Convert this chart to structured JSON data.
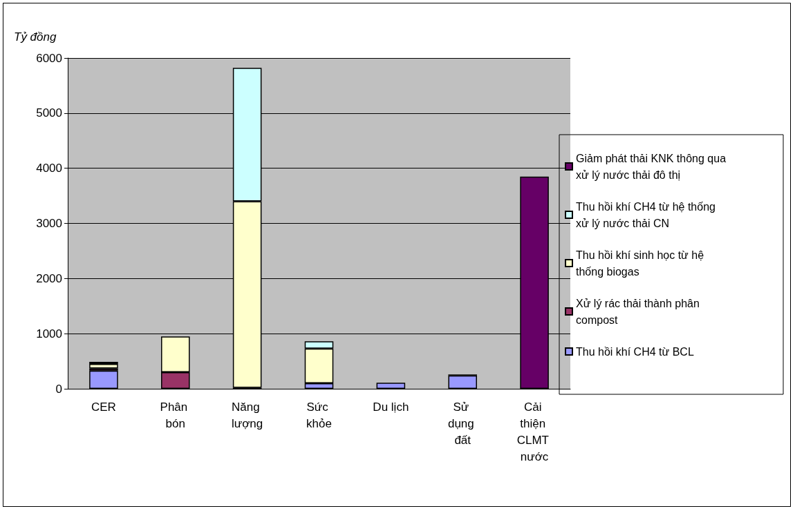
{
  "chart_data": {
    "type": "bar",
    "stacked": true,
    "ylabel": "Tỷ đồng",
    "categories": [
      "CER",
      "Phân bón",
      "Năng lượng",
      "Sức khỏe",
      "Du lịch",
      "Sử dụng đất",
      "Cải thiện CLMT nước"
    ],
    "series": [
      {
        "name": "Thu hồi khí CH4 từ BCL",
        "color": "#9999ff",
        "values": [
          330,
          null,
          null,
          100,
          110,
          240,
          null
        ]
      },
      {
        "name": "Xử lý rác thải thành phân compost",
        "color": "#993366",
        "values": [
          40,
          300,
          20,
          null,
          null,
          20,
          null
        ]
      },
      {
        "name": "Thu hồi khí sinh học từ hệ thống biogas",
        "color": "#ffffcc",
        "values": [
          80,
          650,
          3380,
          630,
          null,
          null,
          null
        ]
      },
      {
        "name": "Thu hồi khí CH4 từ hệ thống xử lý nước thải CN",
        "color": "#ccffff",
        "values": [
          40,
          null,
          2420,
          130,
          null,
          null,
          null
        ]
      },
      {
        "name": "Giảm phát thải KNK thông qua xử lý nước thải đô thị",
        "color": "#660066",
        "values": [
          null,
          null,
          null,
          null,
          null,
          null,
          3850
        ]
      }
    ],
    "ylim": [
      0,
      6000
    ],
    "yticks": [
      0,
      1000,
      2000,
      3000,
      4000,
      5000,
      6000
    ],
    "grid": "y",
    "legend": "right"
  }
}
